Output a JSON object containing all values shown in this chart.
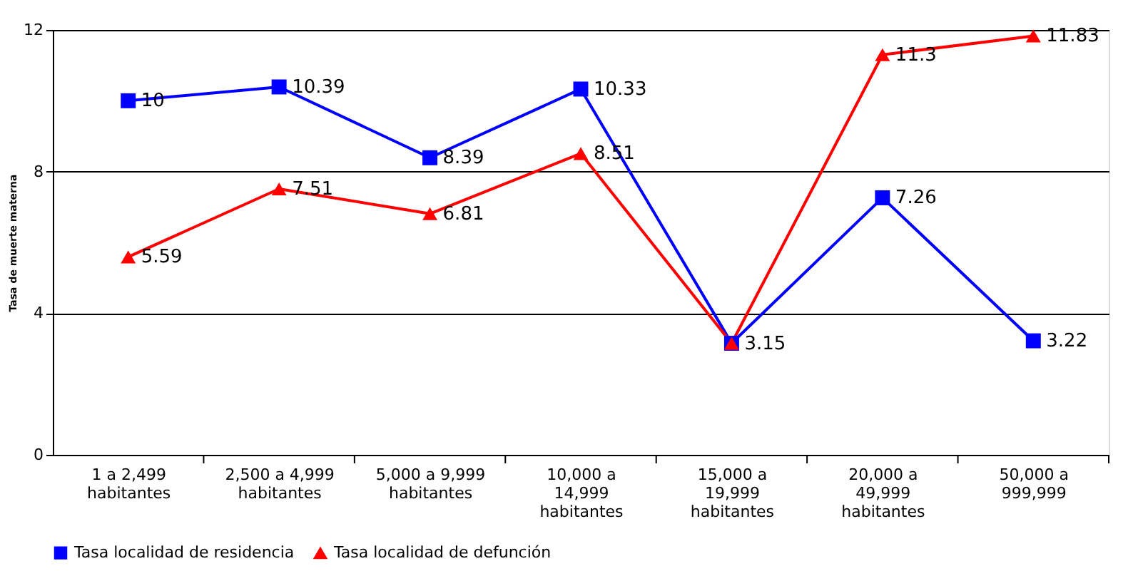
{
  "chart_data": {
    "type": "line",
    "ylabel": "Tasa de muerte materna",
    "categories": [
      "1 a 2,499\nhabitantes",
      "2,500 a 4,999\nhabitantes",
      "5,000 a 9,999\nhabitantes",
      "10,000 a\n14,999\nhabitantes",
      "15,000 a\n19,999\nhabitantes",
      "20,000 a\n49,999\nhabitantes",
      "50,000 a\n999,999"
    ],
    "series": [
      {
        "name": "Tasa localidad de residencia",
        "color": "#0000ff",
        "marker": "square",
        "values": [
          10,
          10.39,
          8.39,
          10.33,
          3.15,
          7.26,
          3.22
        ],
        "value_labels": [
          "10",
          "10.39",
          "8.39",
          "10.33",
          null,
          "7.26",
          "3.22"
        ]
      },
      {
        "name": "Tasa localidad de defunción",
        "color": "#ff0000",
        "marker": "triangle",
        "values": [
          5.59,
          7.51,
          6.81,
          8.51,
          3.15,
          11.3,
          11.83
        ],
        "value_labels": [
          "5.59",
          "7.51",
          "6.81",
          "8.51",
          "3.15",
          "11.3",
          "11.83"
        ]
      }
    ],
    "ylim": [
      0,
      12
    ],
    "yticks": [
      0,
      4,
      8,
      12
    ],
    "grid": "y",
    "legend": "bottom",
    "line_style": "solid"
  }
}
